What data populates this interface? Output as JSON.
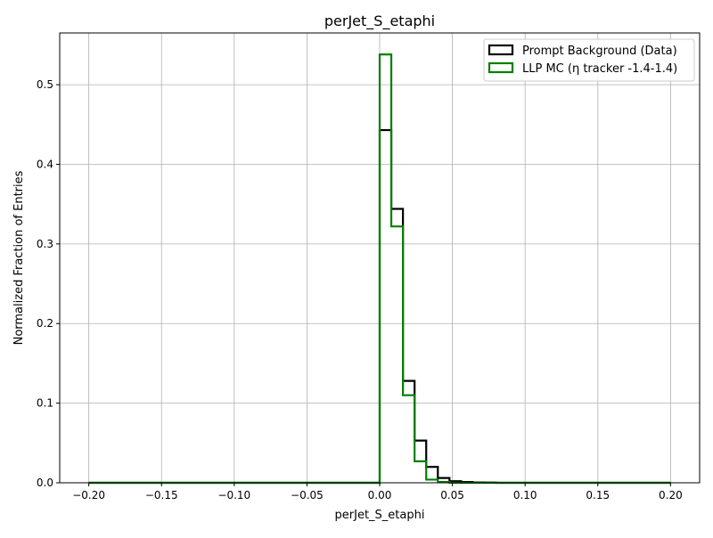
{
  "chart_data": {
    "type": "histogram",
    "title": "perJet_S_etaphi",
    "xlabel": "perJet_S_etaphi",
    "ylabel": "Normalized Fraction of Entries",
    "xlim": [
      -0.22,
      0.22
    ],
    "ylim": [
      0,
      0.565
    ],
    "xticks": [
      -0.2,
      -0.15,
      -0.1,
      -0.05,
      0.0,
      0.05,
      0.1,
      0.15,
      0.2
    ],
    "xtick_labels": [
      "−0.20",
      "−0.15",
      "−0.10",
      "−0.05",
      "0.00",
      "0.05",
      "0.10",
      "0.15",
      "0.20"
    ],
    "yticks": [
      0.0,
      0.1,
      0.2,
      0.3,
      0.4,
      0.5
    ],
    "ytick_labels": [
      "0.0",
      "0.1",
      "0.2",
      "0.3",
      "0.4",
      "0.5"
    ],
    "grid": true,
    "legend_position": "top-right",
    "bin_edges": [
      -0.2,
      0.0,
      0.008,
      0.016,
      0.024,
      0.032,
      0.04,
      0.048,
      0.056,
      0.064,
      0.072,
      0.08,
      0.2
    ],
    "series": [
      {
        "name": "Prompt Background (Data)",
        "color": "#000000",
        "values": [
          0.0,
          0.443,
          0.344,
          0.128,
          0.053,
          0.02,
          0.006,
          0.002,
          0.001,
          0.0005,
          0.0003,
          0.0
        ]
      },
      {
        "name": "LLP MC (η tracker -1.4-1.4)",
        "color": "#008000",
        "values": [
          0.0,
          0.538,
          0.322,
          0.11,
          0.027,
          0.004,
          0.001,
          0.0,
          0.0,
          0.0,
          0.0,
          0.0
        ]
      }
    ]
  }
}
